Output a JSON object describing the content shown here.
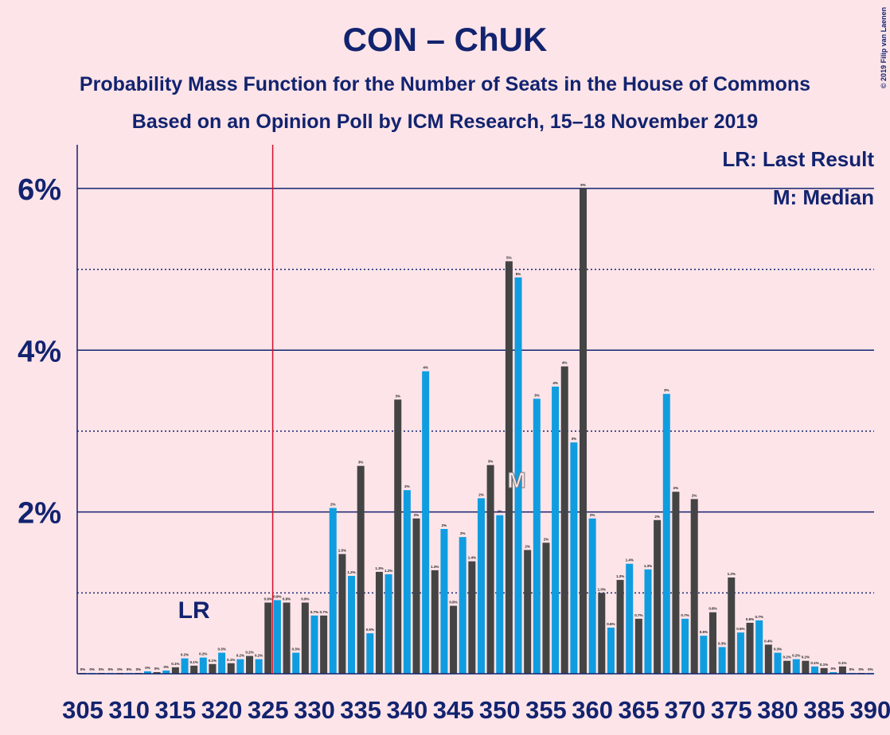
{
  "chart_data": {
    "type": "bar",
    "title": "CON – ChUK",
    "subtitle": "Probability Mass Function for the Number of Seats in the House of Commons",
    "subtitle2": "Based on an Opinion Poll by ICM Research, 15–18 November 2019",
    "copyright": "© 2019 Filip van Laenen",
    "legend_lr": "LR: Last Result",
    "legend_m": "M: Median",
    "lr_label": "LR",
    "median_label": "M",
    "last_result": 325,
    "median": 352,
    "x": [
      305,
      306,
      307,
      308,
      309,
      310,
      311,
      312,
      313,
      314,
      315,
      316,
      317,
      318,
      319,
      320,
      321,
      322,
      323,
      324,
      325,
      326,
      327,
      328,
      329,
      330,
      331,
      332,
      333,
      334,
      335,
      336,
      337,
      338,
      339,
      340,
      341,
      342,
      343,
      344,
      345,
      346,
      347,
      348,
      349,
      350,
      351,
      352,
      353,
      354,
      355,
      356,
      357,
      358,
      359,
      360,
      361,
      362,
      363,
      364,
      365,
      366,
      367,
      368,
      369,
      370,
      371,
      372,
      373,
      374,
      375,
      376,
      377,
      378,
      379,
      380,
      381,
      382,
      383,
      384,
      385,
      386,
      387,
      388,
      389,
      390
    ],
    "values": [
      0.01,
      0.01,
      0.01,
      0.01,
      0.01,
      0.01,
      0.01,
      0.03,
      0.02,
      0.04,
      0.08,
      0.19,
      0.1,
      0.2,
      0.12,
      0.26,
      0.13,
      0.18,
      0.22,
      0.18,
      0.88,
      0.91,
      0.88,
      0.26,
      0.88,
      0.72,
      0.72,
      2.05,
      1.48,
      1.21,
      2.57,
      0.5,
      1.26,
      1.23,
      3.39,
      2.27,
      1.92,
      3.74,
      1.28,
      1.79,
      0.84,
      1.69,
      1.39,
      2.17,
      2.58,
      1.96,
      5.1,
      4.9,
      1.53,
      3.4,
      1.62,
      3.55,
      3.8,
      2.86,
      6.0,
      1.92,
      1.0,
      0.57,
      1.16,
      1.36,
      0.68,
      1.29,
      1.9,
      3.46,
      2.25,
      0.68,
      2.16,
      0.47,
      0.76,
      0.33,
      1.19,
      0.51,
      0.63,
      0.66,
      0.36,
      0.26,
      0.16,
      0.18,
      0.16,
      0.09,
      0.07,
      0.02,
      0.09,
      0.01,
      0.01,
      0.01
    ],
    "value_labels": [
      "0%",
      "0%",
      "0%",
      "0%",
      "0%",
      "0%",
      "0%",
      "0%",
      "0%",
      "0%",
      "0.1%",
      "0.2%",
      "0.1%",
      "0.2%",
      "0.1%",
      "0.3%",
      "0.1%",
      "0.2%",
      "0.2%",
      "0.2%",
      "0.9%",
      "0.9%",
      "0.9%",
      "0.3%",
      "0.9%",
      "0.7%",
      "0.7%",
      "2%",
      "1.5%",
      "1.2%",
      "3%",
      "0.5%",
      "1.3%",
      "1.2%",
      "3%",
      "2%",
      "2%",
      "4%",
      "1.3%",
      "2%",
      "0.8%",
      "2%",
      "1.4%",
      "2%",
      "3%",
      "2%",
      "5%",
      "5%",
      "2%",
      "3%",
      "2%",
      "4%",
      "4%",
      "3%",
      "6%",
      "2%",
      "1.0%",
      "0.6%",
      "1.2%",
      "1.4%",
      "0.7%",
      "1.3%",
      "2%",
      "3%",
      "2%",
      "0.7%",
      "2%",
      "0.5%",
      "0.8%",
      "0.3%",
      "1.2%",
      "0.5%",
      "0.6%",
      "0.7%",
      "0.4%",
      "0.3%",
      "0.2%",
      "0.2%",
      "0.2%",
      "0.1%",
      "0.1%",
      "0%",
      "0.1%",
      "0%",
      "0%",
      "0%"
    ],
    "bar_colors": [
      "#0f9de0",
      "#444444"
    ],
    "xlim": [
      304.4,
      390.4
    ],
    "xticks": [
      305,
      310,
      315,
      320,
      325,
      330,
      335,
      340,
      345,
      350,
      355,
      360,
      365,
      370,
      375,
      380,
      385,
      390
    ],
    "ylim": [
      0,
      6.54
    ],
    "yticks": [
      {
        "value": 2,
        "label": "2%"
      },
      {
        "value": 4,
        "label": "4%"
      },
      {
        "value": 6,
        "label": "6%"
      }
    ],
    "minor_yticks": [
      1,
      3,
      5
    ],
    "grid": true
  }
}
